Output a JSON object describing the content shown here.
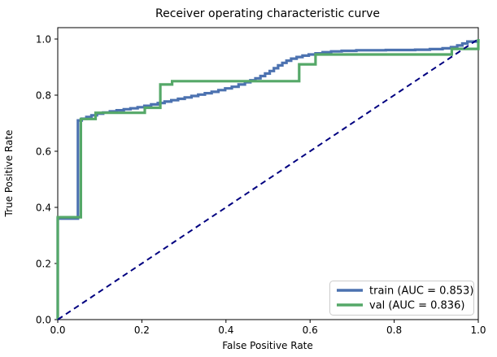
{
  "title": "Receiver operating characteristic curve",
  "chart_data": {
    "type": "line",
    "subtype": "roc-step-curves",
    "title": "Receiver operating characteristic curve",
    "xlabel": "False Positive Rate",
    "ylabel": "True Positive Rate",
    "xlim": [
      0.0,
      1.0
    ],
    "ylim": [
      0.0,
      1.04
    ],
    "x_tick_values": [
      0.0,
      0.2,
      0.4,
      0.6,
      0.8,
      1.0
    ],
    "x_tick_labels": [
      "0.0",
      "0.2",
      "0.4",
      "0.6",
      "0.8",
      "1.0"
    ],
    "y_tick_values": [
      0.0,
      0.2,
      0.4,
      0.6,
      0.8,
      1.0
    ],
    "y_tick_labels": [
      "0.0",
      "0.2",
      "0.4",
      "0.6",
      "0.8",
      "1.0"
    ],
    "grid": false,
    "legend_position": "lower right",
    "background_color": "#ffffff",
    "axis_color": "#000000",
    "series": [
      {
        "name": "train (AUC = 0.853)",
        "label": "train",
        "auc": 0.853,
        "color": "#4c72b0",
        "line_style": "solid",
        "interp": "step",
        "points": [
          [
            0,
            0
          ],
          [
            0,
            0.36
          ],
          [
            0.048,
            0.36
          ],
          [
            0.048,
            0.71
          ],
          [
            0.057,
            0.716
          ],
          [
            0.068,
            0.722
          ],
          [
            0.08,
            0.728
          ],
          [
            0.093,
            0.734
          ],
          [
            0.108,
            0.738
          ],
          [
            0.124,
            0.742
          ],
          [
            0.14,
            0.746
          ],
          [
            0.157,
            0.75
          ],
          [
            0.173,
            0.753
          ],
          [
            0.19,
            0.757
          ],
          [
            0.206,
            0.762
          ],
          [
            0.222,
            0.767
          ],
          [
            0.238,
            0.772
          ],
          [
            0.254,
            0.777
          ],
          [
            0.27,
            0.782
          ],
          [
            0.286,
            0.787
          ],
          [
            0.302,
            0.792
          ],
          [
            0.318,
            0.797
          ],
          [
            0.334,
            0.802
          ],
          [
            0.35,
            0.807
          ],
          [
            0.366,
            0.812
          ],
          [
            0.382,
            0.818
          ],
          [
            0.398,
            0.824
          ],
          [
            0.414,
            0.83
          ],
          [
            0.43,
            0.838
          ],
          [
            0.445,
            0.846
          ],
          [
            0.458,
            0.853
          ],
          [
            0.47,
            0.86
          ],
          [
            0.482,
            0.868
          ],
          [
            0.493,
            0.877
          ],
          [
            0.504,
            0.886
          ],
          [
            0.514,
            0.896
          ],
          [
            0.524,
            0.906
          ],
          [
            0.534,
            0.915
          ],
          [
            0.544,
            0.923
          ],
          [
            0.555,
            0.93
          ],
          [
            0.568,
            0.936
          ],
          [
            0.582,
            0.941
          ],
          [
            0.597,
            0.945
          ],
          [
            0.613,
            0.949
          ],
          [
            0.63,
            0.953
          ],
          [
            0.65,
            0.956
          ],
          [
            0.675,
            0.958
          ],
          [
            0.71,
            0.96
          ],
          [
            0.78,
            0.961
          ],
          [
            0.85,
            0.962
          ],
          [
            0.885,
            0.964
          ],
          [
            0.915,
            0.967
          ],
          [
            0.935,
            0.971
          ],
          [
            0.95,
            0.977
          ],
          [
            0.962,
            0.984
          ],
          [
            0.974,
            0.991
          ],
          [
            1.0,
            1.0
          ]
        ]
      },
      {
        "name": "val (AUC = 0.836)",
        "label": "val",
        "auc": 0.836,
        "color": "#55a868",
        "line_style": "solid",
        "interp": "step",
        "points": [
          [
            0,
            0
          ],
          [
            0,
            0.365
          ],
          [
            0.055,
            0.365
          ],
          [
            0.055,
            0.715
          ],
          [
            0.09,
            0.715
          ],
          [
            0.09,
            0.737
          ],
          [
            0.207,
            0.737
          ],
          [
            0.207,
            0.755
          ],
          [
            0.244,
            0.755
          ],
          [
            0.244,
            0.838
          ],
          [
            0.272,
            0.838
          ],
          [
            0.272,
            0.85
          ],
          [
            0.574,
            0.85
          ],
          [
            0.574,
            0.91
          ],
          [
            0.613,
            0.91
          ],
          [
            0.613,
            0.945
          ],
          [
            0.937,
            0.945
          ],
          [
            0.937,
            0.965
          ],
          [
            1.0,
            0.965
          ],
          [
            1.0,
            1.0
          ]
        ]
      },
      {
        "name": "chance-diagonal",
        "label": "chance",
        "color": "#000080",
        "line_style": "dashed",
        "interp": "linear",
        "points": [
          [
            0,
            0
          ],
          [
            1,
            1
          ]
        ]
      }
    ],
    "legend_entries": [
      {
        "label": "train (AUC = 0.853)",
        "color": "#4c72b0"
      },
      {
        "label": "val (AUC = 0.836)",
        "color": "#55a868"
      }
    ]
  }
}
